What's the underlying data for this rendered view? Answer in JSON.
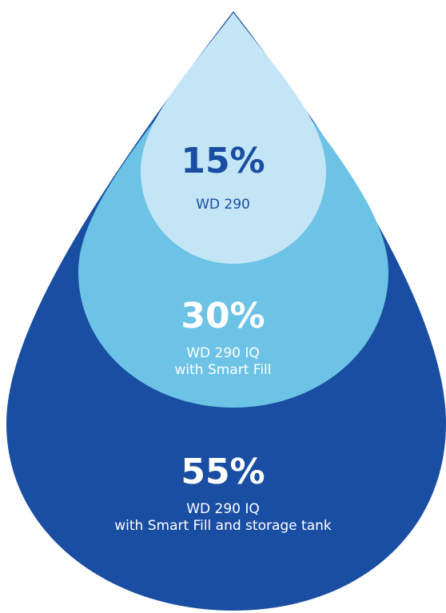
{
  "colors": {
    "outer_drop": "#1a4ea3",
    "middle_drop": "#6cc3e6",
    "inner_drop": "#c4e5f5",
    "dark_text": "#1a4ea3",
    "light_text": "#ffffff"
  },
  "segments": [
    {
      "value": 15,
      "percent_label": "15%",
      "description": [
        "WD 290"
      ]
    },
    {
      "value": 30,
      "percent_label": "30%",
      "description": [
        "WD 290 IQ",
        "with Smart Fill"
      ]
    },
    {
      "value": 55,
      "percent_label": "55%",
      "description": [
        "WD 290 IQ",
        "with Smart Fill and storage tank"
      ]
    }
  ]
}
